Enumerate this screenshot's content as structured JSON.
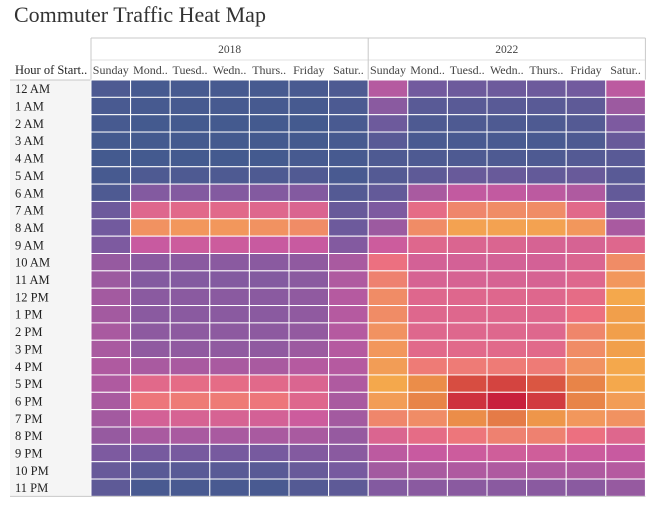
{
  "chart_data": {
    "type": "heatmap",
    "title": "Commuter Traffic Heat Map",
    "row_header": "Hour of Start..",
    "groups": [
      "2018",
      "2022"
    ],
    "columns": [
      "Sunday",
      "Mond..",
      "Tuesd..",
      "Wedn..",
      "Thurs..",
      "Friday",
      "Satur.."
    ],
    "rows": [
      "12 AM",
      "1 AM",
      "2 AM",
      "3 AM",
      "4 AM",
      "5 AM",
      "6 AM",
      "7 AM",
      "8 AM",
      "9 AM",
      "10 AM",
      "11 AM",
      "12 PM",
      "1 PM",
      "2 PM",
      "3 PM",
      "4 PM",
      "5 PM",
      "6 PM",
      "7 PM",
      "8 PM",
      "9 PM",
      "10 PM",
      "11 PM"
    ],
    "values": {
      "2018": [
        [
          8,
          5,
          5,
          5,
          5,
          6,
          8
        ],
        [
          6,
          5,
          5,
          5,
          5,
          5,
          7
        ],
        [
          5,
          4,
          4,
          4,
          4,
          4,
          6
        ],
        [
          4,
          4,
          4,
          4,
          4,
          4,
          5
        ],
        [
          4,
          4,
          4,
          4,
          4,
          5,
          5
        ],
        [
          5,
          8,
          8,
          8,
          8,
          9,
          6
        ],
        [
          8,
          28,
          28,
          28,
          28,
          28,
          10
        ],
        [
          20,
          62,
          64,
          64,
          62,
          60,
          18
        ],
        [
          22,
          82,
          84,
          84,
          82,
          80,
          20
        ],
        [
          26,
          50,
          52,
          52,
          50,
          50,
          28
        ],
        [
          34,
          30,
          30,
          30,
          30,
          32,
          40
        ],
        [
          36,
          28,
          28,
          28,
          28,
          30,
          42
        ],
        [
          38,
          30,
          30,
          30,
          30,
          32,
          44
        ],
        [
          38,
          30,
          30,
          30,
          30,
          32,
          44
        ],
        [
          40,
          31,
          31,
          31,
          31,
          33,
          44
        ],
        [
          40,
          32,
          32,
          32,
          32,
          36,
          44
        ],
        [
          42,
          40,
          40,
          40,
          40,
          44,
          44
        ],
        [
          42,
          64,
          66,
          66,
          64,
          60,
          42
        ],
        [
          40,
          72,
          74,
          74,
          72,
          62,
          40
        ],
        [
          38,
          56,
          58,
          58,
          56,
          52,
          38
        ],
        [
          34,
          40,
          40,
          40,
          40,
          40,
          34
        ],
        [
          26,
          24,
          24,
          24,
          24,
          28,
          30
        ],
        [
          18,
          12,
          12,
          12,
          12,
          18,
          24
        ],
        [
          14,
          6,
          6,
          6,
          6,
          10,
          14
        ]
      ],
      "2022": [
        [
          44,
          22,
          20,
          20,
          20,
          22,
          46
        ],
        [
          30,
          12,
          12,
          12,
          12,
          14,
          36
        ],
        [
          20,
          8,
          8,
          8,
          8,
          10,
          26
        ],
        [
          12,
          6,
          6,
          6,
          6,
          8,
          18
        ],
        [
          8,
          8,
          8,
          8,
          8,
          10,
          12
        ],
        [
          10,
          14,
          18,
          18,
          16,
          18,
          12
        ],
        [
          16,
          40,
          48,
          48,
          46,
          42,
          16
        ],
        [
          26,
          66,
          78,
          80,
          80,
          64,
          26
        ],
        [
          36,
          80,
          88,
          88,
          88,
          84,
          40
        ],
        [
          52,
          62,
          60,
          60,
          58,
          58,
          62
        ],
        [
          70,
          56,
          56,
          56,
          56,
          60,
          80
        ],
        [
          76,
          58,
          58,
          58,
          58,
          62,
          84
        ],
        [
          80,
          62,
          62,
          62,
          62,
          66,
          90
        ],
        [
          80,
          62,
          62,
          62,
          62,
          70,
          92
        ],
        [
          82,
          62,
          62,
          62,
          62,
          78,
          92
        ],
        [
          84,
          64,
          64,
          64,
          64,
          80,
          92
        ],
        [
          86,
          74,
          74,
          74,
          74,
          82,
          90
        ],
        [
          90,
          96,
          110,
          112,
          108,
          98,
          90
        ],
        [
          86,
          98,
          116,
          120,
          114,
          98,
          86
        ],
        [
          78,
          80,
          96,
          100,
          94,
          84,
          82
        ],
        [
          60,
          66,
          72,
          76,
          76,
          70,
          62
        ],
        [
          46,
          50,
          52,
          54,
          54,
          52,
          50
        ],
        [
          38,
          40,
          42,
          42,
          42,
          42,
          44
        ],
        [
          28,
          30,
          30,
          30,
          30,
          30,
          34
        ]
      ]
    },
    "color_scale": [
      "#3a5a8c",
      "#7a5aa0",
      "#c85aa0",
      "#ec7080",
      "#f4a84c",
      "#c8203c"
    ],
    "cell_border_color": "#ffffff",
    "header_background": "#f5f5f5"
  }
}
